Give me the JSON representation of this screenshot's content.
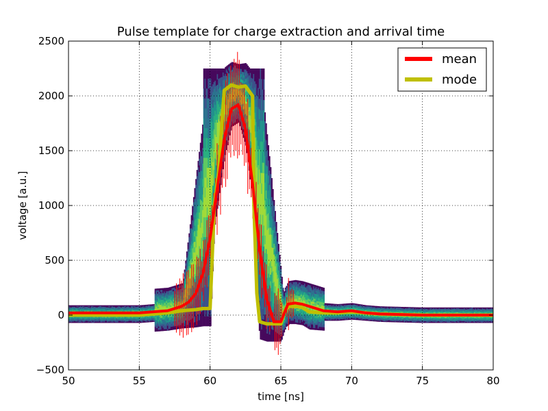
{
  "chart_data": {
    "type": "line",
    "title": "Pulse template for charge extraction and arrival time",
    "xlabel": "time [ns]",
    "ylabel": "voltage [a.u.]",
    "xlim": [
      50,
      80
    ],
    "ylim": [
      -500,
      2500
    ],
    "xticks": [
      "50",
      "55",
      "60",
      "65",
      "70",
      "75",
      "80"
    ],
    "yticks": [
      "−500",
      "0",
      "500",
      "1000",
      "1500",
      "2000",
      "2500"
    ],
    "grid": true,
    "legend_placement": "top-right",
    "background": "2D histogram of pulse samples (viridis colormap)",
    "series": [
      {
        "name": "mean",
        "color": "#ff0000",
        "error_bars": true,
        "x": [
          50,
          55,
          57,
          58,
          58.5,
          59,
          59.5,
          60,
          60.5,
          61,
          61.5,
          62,
          62.5,
          63,
          63.5,
          64,
          64.5,
          65,
          65.5,
          66,
          66.5,
          67,
          68,
          69,
          70,
          71,
          72,
          75,
          80
        ],
        "y": [
          20,
          20,
          40,
          80,
          120,
          200,
          380,
          700,
          1150,
          1600,
          1880,
          1920,
          1700,
          1200,
          600,
          150,
          -60,
          -60,
          100,
          110,
          100,
          80,
          40,
          30,
          40,
          20,
          10,
          0,
          0
        ]
      },
      {
        "name": "mode",
        "color": "#bfbf00",
        "error_bars": false,
        "x": [
          50,
          55,
          57,
          58,
          59,
          59.5,
          60,
          60.3,
          60.6,
          61,
          61.5,
          62,
          62.5,
          63,
          63.1,
          63.3,
          63.5,
          64,
          65,
          65.3,
          65.6,
          66,
          66.5,
          67,
          68,
          69,
          70,
          71,
          72,
          75,
          80
        ],
        "y": [
          0,
          0,
          20,
          40,
          50,
          60,
          60,
          1000,
          1300,
          2050,
          2100,
          2080,
          2090,
          2000,
          1000,
          200,
          -60,
          -80,
          -80,
          50,
          80,
          80,
          70,
          30,
          20,
          20,
          30,
          20,
          10,
          0,
          0
        ]
      }
    ]
  }
}
